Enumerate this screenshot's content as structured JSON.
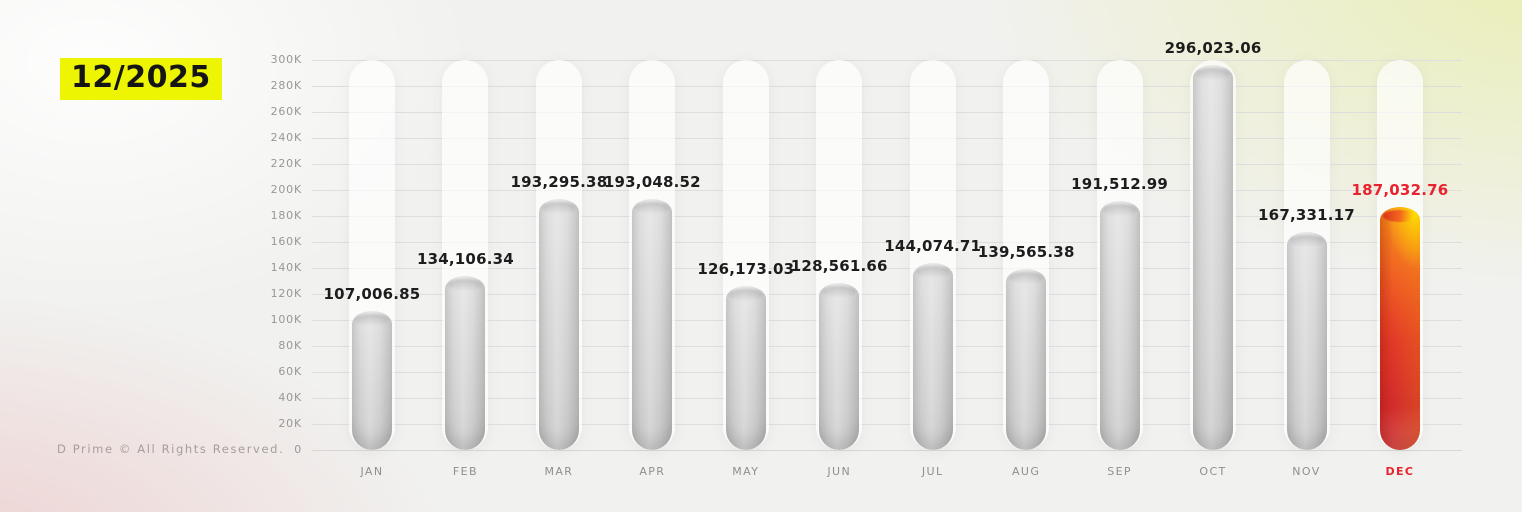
{
  "title": {
    "period": "12/2025"
  },
  "footer": {
    "copyright": "D Prime © All Rights Reserved."
  },
  "chart_data": {
    "type": "bar",
    "title": "12/2025",
    "categories": [
      "JAN",
      "FEB",
      "MAR",
      "APR",
      "MAY",
      "JUN",
      "JUL",
      "AUG",
      "SEP",
      "OCT",
      "NOV",
      "DEC"
    ],
    "values": [
      107006.85,
      134106.34,
      193295.38,
      193048.52,
      126173.03,
      128561.66,
      144074.71,
      139565.38,
      191512.99,
      296023.06,
      167331.17,
      187032.76
    ],
    "value_labels": [
      "107,006.85",
      "134,106.34",
      "193,295.38",
      "193,048.52",
      "126,173.03",
      "128,561.66",
      "144,074.71",
      "139,565.38",
      "191,512.99",
      "296,023.06",
      "167,331.17",
      "187,032.76"
    ],
    "xlabel": "",
    "ylabel": "",
    "ylim": [
      0,
      300000
    ],
    "ytick_step": 20000,
    "ytick_labels": [
      "0",
      "20K",
      "40K",
      "60K",
      "80K",
      "100K",
      "120K",
      "140K",
      "160K",
      "180K",
      "200K",
      "220K",
      "240K",
      "260K",
      "280K",
      "300K"
    ],
    "grid": true,
    "legend": "none",
    "highlight_index": 11,
    "colors": {
      "accent_yellow": "#edf502",
      "highlight_text": "#e8232d",
      "bar_gray": "#d6d6d6",
      "highlight_gradient_top": "#ffd21e",
      "highlight_gradient_mid": "#ef5d24",
      "highlight_gradient_bottom": "#d22c2c",
      "label_gray": "#8f8f8f",
      "value_text": "#1d1d1d"
    }
  }
}
